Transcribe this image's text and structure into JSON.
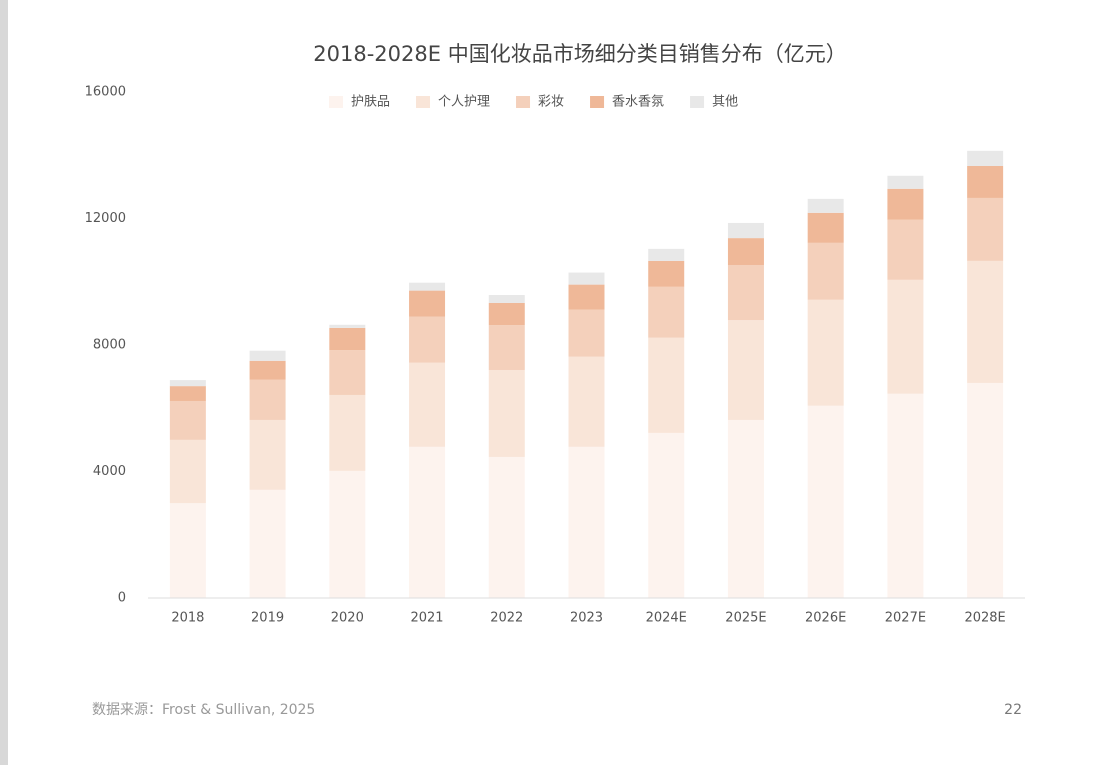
{
  "chart_data": {
    "type": "stacked-bar",
    "title": "2018-2028E 中国化妆品市场细分类目销售分布（亿元）",
    "categories": [
      "2018",
      "2019",
      "2020",
      "2021",
      "2022",
      "2023",
      "2024E",
      "2025E",
      "2026E",
      "2027E",
      "2028E"
    ],
    "series": [
      {
        "name": "护肤品",
        "color": "#fdf3ee",
        "values": [
          3000,
          3420,
          4020,
          4780,
          4460,
          4780,
          5220,
          5630,
          6080,
          6460,
          6800
        ]
      },
      {
        "name": "个人护理",
        "color": "#f9e5d8",
        "values": [
          2000,
          2210,
          2400,
          2660,
          2750,
          2850,
          3010,
          3160,
          3350,
          3600,
          3860
        ]
      },
      {
        "name": "彩妆",
        "color": "#f4d0bb",
        "values": [
          1230,
          1270,
          1420,
          1460,
          1420,
          1490,
          1610,
          1740,
          1800,
          1900,
          1990
        ]
      },
      {
        "name": "香水香氛",
        "color": "#efb898",
        "values": [
          470,
          600,
          700,
          820,
          700,
          790,
          820,
          850,
          950,
          980,
          1010
        ]
      },
      {
        "name": "其他",
        "color": "#e8e8e8",
        "values": [
          190,
          320,
          100,
          250,
          250,
          380,
          380,
          480,
          440,
          410,
          480
        ]
      }
    ],
    "ylim": [
      0,
      16000
    ],
    "yticks": [
      0,
      4000,
      8000,
      12000,
      16000
    ],
    "grid": false,
    "legend": "top"
  },
  "footer": {
    "source": "数据来源：Frost & Sullivan, 2025",
    "page_number": "22"
  }
}
